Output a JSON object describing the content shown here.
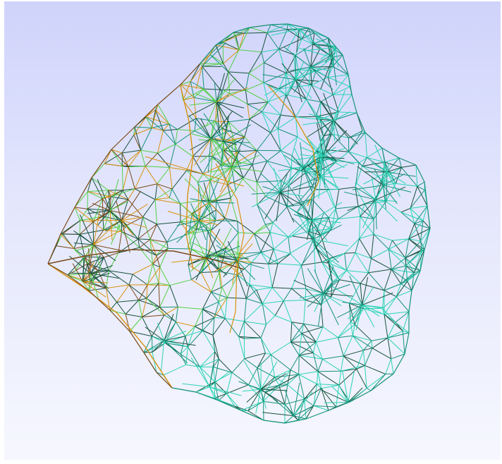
{
  "viewer": {
    "background_top_color": "#cfd3fb",
    "background_bottom_color": "#f6f7fe"
  },
  "mesh": {
    "render_mode": "wireframe",
    "colors": {
      "cyan_edge": "#2ad4b4",
      "teal_edge": "#16927a",
      "dark_edge": "#17523c",
      "green_edge": "#52d046",
      "orange_edge": "#d8920e",
      "brown_edge": "#7a4818"
    }
  }
}
